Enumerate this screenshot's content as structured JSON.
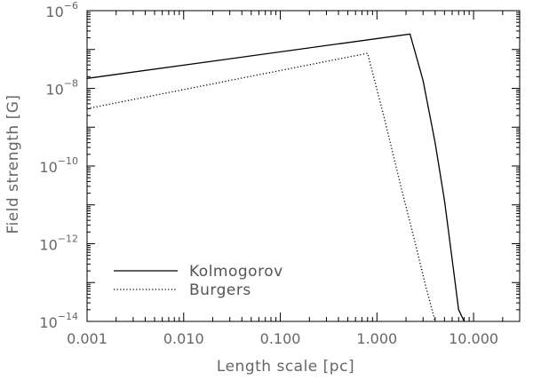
{
  "chart_data": {
    "type": "line",
    "title": "",
    "xlabel": "Length scale [pc]",
    "ylabel": "Field strength [G]",
    "xscale": "log",
    "yscale": "log",
    "xlim": [
      0.001,
      30
    ],
    "ylim": [
      1e-14,
      1e-06
    ],
    "x_ticks": [
      {
        "value": 0.001,
        "label": "0.001"
      },
      {
        "value": 0.01,
        "label": "0.010"
      },
      {
        "value": 0.1,
        "label": "0.100"
      },
      {
        "value": 1,
        "label": "1.000"
      },
      {
        "value": 10,
        "label": "10.000"
      }
    ],
    "y_ticks": [
      {
        "value": 1e-14,
        "base": "10",
        "exp": "−14"
      },
      {
        "value": 1e-12,
        "base": "10",
        "exp": "−12"
      },
      {
        "value": 1e-10,
        "base": "10",
        "exp": "−10"
      },
      {
        "value": 1e-08,
        "base": "10",
        "exp": "−8"
      },
      {
        "value": 1e-06,
        "base": "10",
        "exp": "−6"
      }
    ],
    "legend": {
      "position": "bottom-left"
    },
    "series": [
      {
        "name": "Kolmogorov",
        "style": "solid",
        "color": "#000000",
        "x": [
          0.001,
          2.2,
          3.0,
          4.0,
          5.0,
          6.0,
          7.0,
          8.0
        ],
        "y": [
          1.8e-08,
          2.5e-07,
          1.6e-08,
          4e-10,
          1.3e-11,
          4e-13,
          2e-14,
          1e-14
        ]
      },
      {
        "name": "Burgers",
        "style": "dotted",
        "color": "#000000",
        "x": [
          0.001,
          0.8,
          1.2,
          1.8,
          2.5,
          3.2,
          4.0
        ],
        "y": [
          3e-09,
          8e-08,
          1.6e-09,
          2.5e-11,
          1e-12,
          8e-14,
          1e-14
        ]
      }
    ]
  }
}
